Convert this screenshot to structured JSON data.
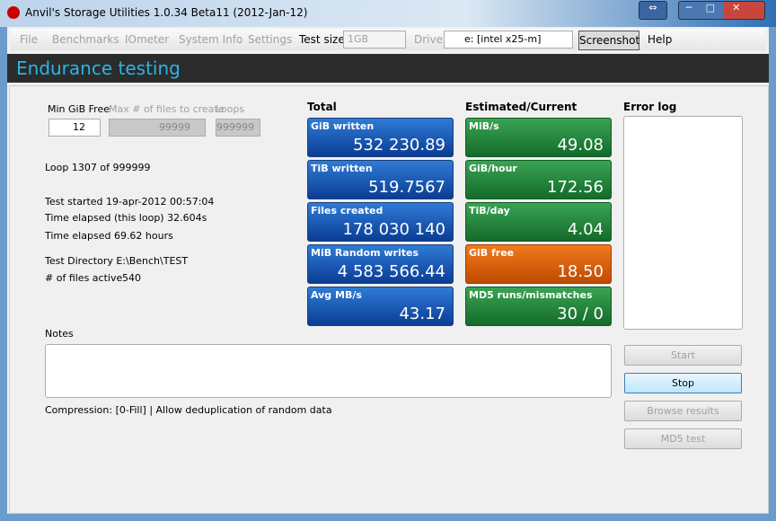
{
  "window": {
    "title": "Anvil's Storage Utilities 1.0.34 Beta11 (2012-Jan-12)"
  },
  "menu": {
    "items": [
      "File",
      "Benchmarks",
      "IOmeter",
      "System Info",
      "Settings"
    ],
    "test_size_label": "Test size",
    "test_size": "1GB",
    "drive_label": "Drive",
    "drive": "e: [intel x25-m]",
    "screenshot": "Screenshot",
    "help": "Help"
  },
  "header": {
    "title": "Endurance testing"
  },
  "settings": {
    "min_free_label": "Min GiB Free",
    "min_free": "12",
    "max_files_label": "Max # of files to create",
    "max_files": "99999",
    "loops_label": "Loops",
    "loops": "999999"
  },
  "status": {
    "loop": "Loop 1307 of 999999",
    "started": "Test started 19-apr-2012 00:57:04",
    "elapsed_loop": "Time elapsed (this loop) 32.604s",
    "elapsed": "Time elapsed 69.62 hours",
    "test_dir": "Test Directory E:\\Bench\\TEST",
    "files_active_label": "# of files active",
    "files_active": "540"
  },
  "total": {
    "title": "Total",
    "tiles": [
      {
        "label": "GiB written",
        "value": "532 230.89"
      },
      {
        "label": "TiB written",
        "value": "519.7567"
      },
      {
        "label": "Files created",
        "value": "178 030 140"
      },
      {
        "label": "MiB Random writes",
        "value": "4 583 566.44"
      },
      {
        "label": "Avg MB/s",
        "value": "43.17"
      }
    ]
  },
  "estimated": {
    "title": "Estimated/Current",
    "tiles": [
      {
        "label": "MiB/s",
        "value": "49.08"
      },
      {
        "label": "GiB/hour",
        "value": "172.56"
      },
      {
        "label": "TiB/day",
        "value": "4.04"
      },
      {
        "label": "GiB free",
        "value": "18.50"
      },
      {
        "label": "MD5 runs/mismatches",
        "value": "30 / 0"
      }
    ]
  },
  "error_log": {
    "title": "Error log"
  },
  "notes": {
    "label": "Notes"
  },
  "compression": "Compression: [0-Fill] | Allow deduplication of random data",
  "buttons": [
    "Start",
    "Stop",
    "Browse results",
    "MD5 test"
  ]
}
